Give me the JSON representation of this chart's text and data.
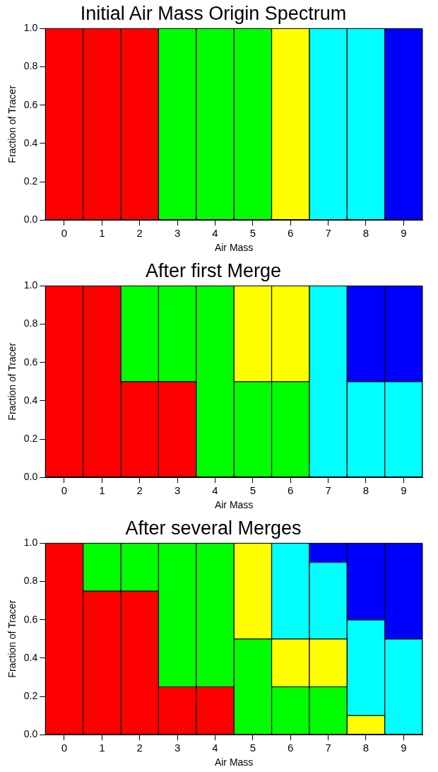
{
  "chart_data": [
    {
      "type": "bar",
      "title": "Initial Air Mass Origin Spectrum",
      "xlabel": "Air Mass",
      "ylabel": "Fraction of Tracer",
      "categories": [
        "0",
        "1",
        "2",
        "3",
        "4",
        "5",
        "6",
        "7",
        "8",
        "9"
      ],
      "stacked": true,
      "ylim": [
        0,
        1
      ],
      "yticks": [
        {
          "value": 0,
          "label": "0.0"
        },
        {
          "value": 0.2,
          "label": "0.2"
        },
        {
          "value": 0.4,
          "label": "0.4"
        },
        {
          "value": 0.6,
          "label": "0.6"
        },
        {
          "value": 0.8,
          "label": "0.8"
        },
        {
          "value": 1,
          "label": "1.0"
        }
      ],
      "grid": false,
      "legend": false,
      "series": [
        {
          "color": "#ff0000",
          "values": [
            1,
            1,
            1,
            null,
            null,
            null,
            null,
            null,
            null,
            null
          ]
        },
        {
          "color": "#00ff00",
          "values": [
            null,
            null,
            null,
            1,
            1,
            1,
            null,
            null,
            null,
            null
          ]
        },
        {
          "color": "#ffff00",
          "values": [
            null,
            null,
            null,
            null,
            null,
            null,
            1,
            null,
            null,
            null
          ]
        },
        {
          "color": "#00ffff",
          "values": [
            null,
            null,
            null,
            null,
            null,
            null,
            null,
            1,
            1,
            null
          ]
        },
        {
          "color": "#0000ff",
          "values": [
            null,
            null,
            null,
            null,
            null,
            null,
            null,
            null,
            null,
            1
          ]
        }
      ]
    },
    {
      "type": "bar",
      "title": "After first Merge",
      "xlabel": "Air Mass",
      "ylabel": "Fraction of Tracer",
      "categories": [
        "0",
        "1",
        "2",
        "3",
        "4",
        "5",
        "6",
        "7",
        "8",
        "9"
      ],
      "stacked": true,
      "ylim": [
        0,
        1
      ],
      "yticks": [
        {
          "value": 0,
          "label": "0.0"
        },
        {
          "value": 0.2,
          "label": "0.2"
        },
        {
          "value": 0.4,
          "label": "0.4"
        },
        {
          "value": 0.6,
          "label": "0.6"
        },
        {
          "value": 0.8,
          "label": "0.8"
        },
        {
          "value": 1,
          "label": "1.0"
        }
      ],
      "grid": false,
      "legend": false,
      "series": [
        {
          "color": "#ff0000",
          "values": [
            1,
            1,
            0.5,
            0.5,
            null,
            null,
            null,
            null,
            null,
            null
          ]
        },
        {
          "color": "#00ff00",
          "values": [
            null,
            null,
            0.5,
            0.5,
            1,
            0.5,
            0.5,
            null,
            null,
            null
          ]
        },
        {
          "color": "#ffff00",
          "values": [
            null,
            null,
            null,
            null,
            null,
            0.5,
            0.5,
            null,
            null,
            null
          ]
        },
        {
          "color": "#00ffff",
          "values": [
            null,
            null,
            null,
            null,
            null,
            null,
            null,
            1,
            0.5,
            0.5
          ]
        },
        {
          "color": "#0000ff",
          "values": [
            null,
            null,
            null,
            null,
            null,
            null,
            null,
            null,
            0.5,
            0.5
          ]
        }
      ]
    },
    {
      "type": "bar",
      "title": "After several Merges",
      "xlabel": "Air Mass",
      "ylabel": "Fraction of Tracer",
      "categories": [
        "0",
        "1",
        "2",
        "3",
        "4",
        "5",
        "6",
        "7",
        "8",
        "9"
      ],
      "stacked": true,
      "ylim": [
        0,
        1
      ],
      "yticks": [
        {
          "value": 0,
          "label": "0.0"
        },
        {
          "value": 0.2,
          "label": "0.2"
        },
        {
          "value": 0.4,
          "label": "0.4"
        },
        {
          "value": 0.6,
          "label": "0.6"
        },
        {
          "value": 0.8,
          "label": "0.8"
        },
        {
          "value": 1,
          "label": "1.0"
        }
      ],
      "grid": false,
      "legend": false,
      "series": [
        {
          "color": "#ff0000",
          "values": [
            1,
            0.75,
            0.75,
            0.25,
            0.25,
            null,
            null,
            null,
            null,
            null
          ]
        },
        {
          "color": "#00ff00",
          "values": [
            null,
            0.25,
            0.25,
            0.75,
            0.75,
            0.5,
            0.25,
            0.25,
            null,
            null
          ]
        },
        {
          "color": "#ffff00",
          "values": [
            null,
            null,
            null,
            null,
            null,
            0.5,
            0.25,
            0.25,
            0.1,
            null
          ]
        },
        {
          "color": "#00ffff",
          "values": [
            null,
            null,
            null,
            null,
            null,
            null,
            0.5,
            0.4,
            0.5,
            0.5
          ]
        },
        {
          "color": "#0000ff",
          "values": [
            null,
            null,
            null,
            null,
            null,
            null,
            null,
            0.1,
            0.4,
            0.5
          ]
        }
      ]
    }
  ]
}
